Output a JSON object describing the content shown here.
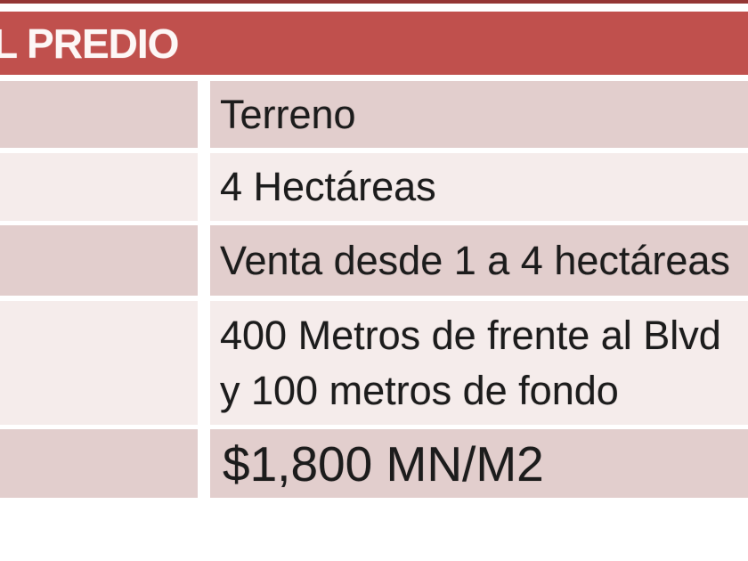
{
  "header": {
    "title": "L PREDIO"
  },
  "table": {
    "rows": [
      {
        "label": "",
        "value": "Terreno",
        "shade": "dark"
      },
      {
        "label": "",
        "value": "4 Hectáreas",
        "shade": "light"
      },
      {
        "label": "",
        "value": "Venta desde 1 a 4 hectáreas",
        "shade": "dark"
      },
      {
        "label": "",
        "value": "400 Metros de frente al Blvd y 100 metros de fondo",
        "lines": [
          "400 Metros de frente al Blvd",
          "y 100 metros de fondo"
        ],
        "shade": "light"
      },
      {
        "label": "",
        "value": "$1,800 MN/M2",
        "shade": "dark"
      }
    ]
  },
  "colors": {
    "header_bg": "#c0504d",
    "top_accent_line": "#943634",
    "row_dark": "#e2cecd",
    "row_light": "#f5eceb",
    "header_text": "#ffffff",
    "body_text": "#1c1c1c"
  }
}
